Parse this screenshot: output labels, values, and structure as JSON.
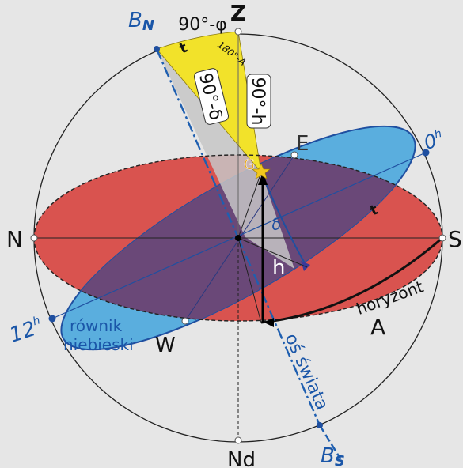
{
  "labels": {
    "zenith": "Z",
    "nadir": "Nd",
    "north": "N",
    "south": "S",
    "east": "E",
    "west": "W",
    "pole_north": "B",
    "pole_north_sub": "N",
    "pole_south": "B",
    "pole_south_sub": "S",
    "hour_0": "0",
    "hour_0_sup": "h",
    "hour_12": "12",
    "hour_12_sup": "h",
    "angle_90_minus_phi": "90°-φ",
    "angle_180_minus_A": "180°-A",
    "angle_90_minus_delta": "90°-δ",
    "angle_90_minus_h": "90°-h",
    "star": "G",
    "declination": "δ",
    "altitude": "h",
    "azimuth": "A",
    "hour_angle_top": "t",
    "hour_angle_side": "t",
    "horizon": "horyzont",
    "equator_line1": "równik",
    "equator_line2": "niebieski",
    "celestial_axis": "oś świata"
  },
  "colors": {
    "background": "#e6e6e6",
    "horizon_fill": "#d9534f",
    "equator_fill": "#5aaede",
    "overlap_fill": "#6a4878",
    "triangle_yellow": "#f2e22a",
    "triangle_gray": "#c6c6c6",
    "axis_blue": "#1f5fb0",
    "label_blue": "#1a56a8",
    "star": "#f2c81e"
  }
}
